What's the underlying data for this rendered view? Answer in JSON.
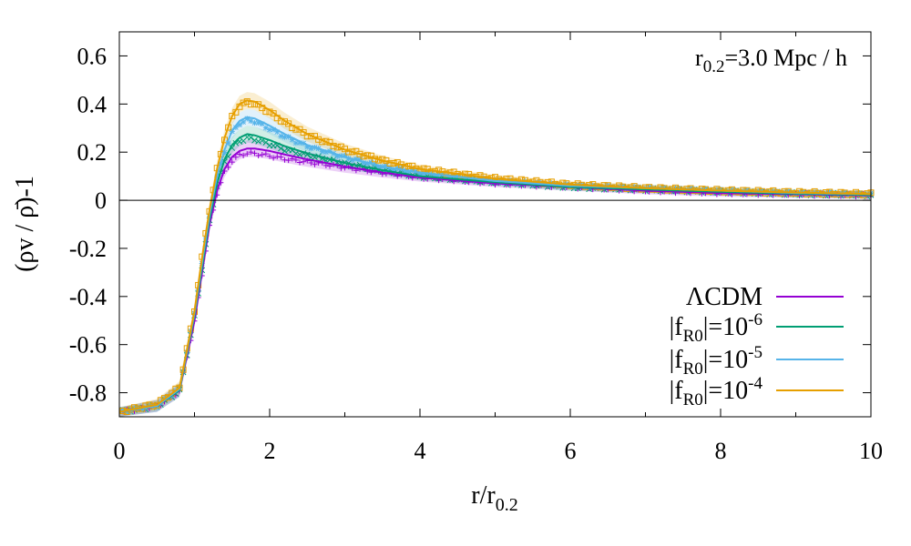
{
  "chart_data": {
    "type": "line",
    "annotation": {
      "base": "r",
      "sub": "0.2",
      "rest": "=3.0 Mpc / h"
    },
    "xlabel": {
      "base": "r/r",
      "sub": "0.2"
    },
    "ylabel": "(ρv / ρ̄)-1",
    "xlim": [
      0,
      10
    ],
    "ylim": [
      -0.9,
      0.7
    ],
    "xticks": [
      0,
      2,
      4,
      6,
      8,
      10
    ],
    "xtick_labels": [
      "0",
      "2",
      "4",
      "6",
      "8",
      "10"
    ],
    "yticks": [
      -0.8,
      -0.6,
      -0.4,
      -0.2,
      0,
      0.2,
      0.4,
      0.6
    ],
    "ytick_labels": [
      "-0.8",
      "-0.6",
      "-0.4",
      "-0.2",
      "0",
      "0.2",
      "0.4",
      "0.6"
    ],
    "zero_line": true,
    "grid": false,
    "legend_position": "bottom-right",
    "series": [
      {
        "name": "ΛCDM",
        "legend": {
          "pre": "ΛCDM",
          "sub": "",
          "mid": "",
          "sup": ""
        },
        "color": "#9400d3",
        "marker": "plus",
        "x": [
          0,
          0.5,
          0.8,
          1.0,
          1.1,
          1.2,
          1.3,
          1.4,
          1.5,
          1.6,
          1.7,
          1.8,
          2.0,
          2.2,
          2.5,
          3.0,
          3.5,
          4.0,
          5.0,
          6.0,
          7.0,
          8.0,
          9.0,
          10.0
        ],
        "values": [
          -0.88,
          -0.855,
          -0.79,
          -0.5,
          -0.3,
          -0.1,
          0.04,
          0.13,
          0.18,
          0.205,
          0.215,
          0.215,
          0.205,
          0.19,
          0.17,
          0.14,
          0.115,
          0.095,
          0.07,
          0.055,
          0.04,
          0.03,
          0.025,
          0.02
        ]
      },
      {
        "name": "|fR0|=10^-6",
        "legend": {
          "pre": "|f",
          "sub": "R0",
          "mid": "|=10",
          "sup": "-6"
        },
        "color": "#009e73",
        "marker": "cross",
        "x": [
          0,
          0.5,
          0.8,
          1.0,
          1.1,
          1.2,
          1.3,
          1.4,
          1.5,
          1.6,
          1.7,
          1.8,
          2.0,
          2.2,
          2.5,
          3.0,
          3.5,
          4.0,
          5.0,
          6.0,
          7.0,
          8.0,
          9.0,
          10.0
        ],
        "values": [
          -0.88,
          -0.855,
          -0.79,
          -0.48,
          -0.28,
          -0.08,
          0.07,
          0.17,
          0.23,
          0.26,
          0.275,
          0.27,
          0.25,
          0.225,
          0.195,
          0.155,
          0.125,
          0.1,
          0.075,
          0.055,
          0.045,
          0.035,
          0.027,
          0.022
        ]
      },
      {
        "name": "|fR0|=10^-5",
        "legend": {
          "pre": "|f",
          "sub": "R0",
          "mid": "|=10",
          "sup": "-5"
        },
        "color": "#56b4e9",
        "marker": "star",
        "x": [
          0,
          0.5,
          0.8,
          1.0,
          1.1,
          1.2,
          1.3,
          1.4,
          1.5,
          1.6,
          1.7,
          1.8,
          2.0,
          2.2,
          2.5,
          3.0,
          3.5,
          4.0,
          5.0,
          6.0,
          7.0,
          8.0,
          9.0,
          10.0
        ],
        "values": [
          -0.88,
          -0.855,
          -0.785,
          -0.47,
          -0.26,
          -0.06,
          0.1,
          0.21,
          0.29,
          0.33,
          0.345,
          0.34,
          0.31,
          0.275,
          0.23,
          0.18,
          0.14,
          0.115,
          0.08,
          0.06,
          0.05,
          0.04,
          0.03,
          0.025
        ]
      },
      {
        "name": "|fR0|=10^-4",
        "legend": {
          "pre": "|f",
          "sub": "R0",
          "mid": "|=10",
          "sup": "-4"
        },
        "color": "#e69f00",
        "marker": "square",
        "x": [
          0,
          0.5,
          0.8,
          1.0,
          1.1,
          1.2,
          1.3,
          1.4,
          1.5,
          1.6,
          1.7,
          1.8,
          2.0,
          2.2,
          2.5,
          3.0,
          3.5,
          4.0,
          5.0,
          6.0,
          7.0,
          8.0,
          9.0,
          10.0
        ],
        "values": [
          -0.88,
          -0.85,
          -0.78,
          -0.46,
          -0.24,
          -0.04,
          0.13,
          0.26,
          0.35,
          0.4,
          0.415,
          0.41,
          0.375,
          0.33,
          0.275,
          0.21,
          0.165,
          0.13,
          0.09,
          0.065,
          0.05,
          0.04,
          0.032,
          0.026
        ]
      }
    ]
  }
}
